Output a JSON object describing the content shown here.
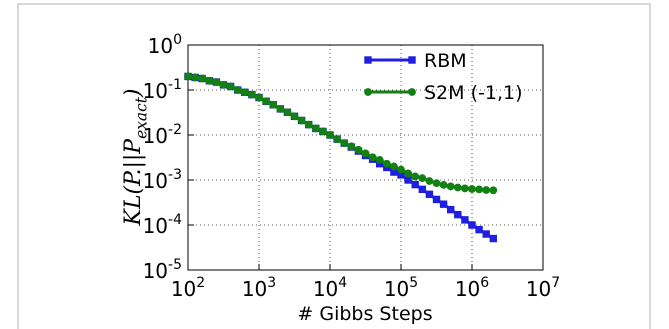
{
  "chart_data": {
    "type": "line",
    "x_label": "# Gibbs Steps",
    "y_label": "KL(P.||P_{exact})",
    "log_x": true,
    "log_y": true,
    "grid": true,
    "legend_position": "upper-right",
    "x": [
      100,
      126,
      158,
      200,
      251,
      316,
      398,
      501,
      631,
      794,
      1000,
      1259,
      1585,
      1995,
      2512,
      3162,
      3981,
      5012,
      6310,
      7943,
      10000,
      12589,
      15849,
      19953,
      25119,
      31623,
      39811,
      50119,
      63096,
      79433,
      100000,
      125893,
      158489,
      199526,
      251189,
      316228,
      398107,
      501187,
      630957,
      794328,
      1000000,
      1258925,
      1584893,
      1995262
    ],
    "series": [
      {
        "name": "RBM",
        "color": "#1f1fdf",
        "marker": "square",
        "values": [
          0.2,
          0.19,
          0.18,
          0.16,
          0.15,
          0.13,
          0.12,
          0.1,
          0.089,
          0.079,
          0.068,
          0.056,
          0.047,
          0.038,
          0.032,
          0.026,
          0.021,
          0.017,
          0.014,
          0.012,
          0.01,
          0.0081,
          0.0066,
          0.0054,
          0.0044,
          0.0035,
          0.0029,
          0.0023,
          0.0019,
          0.0015,
          0.0013,
          0.001,
          0.00079,
          0.00062,
          0.00048,
          0.00037,
          0.00029,
          0.00022,
          0.00017,
          0.00013,
          0.0001,
          7.9e-05,
          6.3e-05,
          5e-05
        ]
      },
      {
        "name": "S2M (-1,1)",
        "color": "#128012",
        "marker": "circle",
        "values": [
          0.2,
          0.19,
          0.18,
          0.16,
          0.15,
          0.13,
          0.12,
          0.1,
          0.089,
          0.079,
          0.068,
          0.056,
          0.047,
          0.038,
          0.032,
          0.026,
          0.021,
          0.017,
          0.014,
          0.012,
          0.01,
          0.0081,
          0.0066,
          0.0056,
          0.0047,
          0.0039,
          0.0032,
          0.0028,
          0.0023,
          0.002,
          0.0017,
          0.0014,
          0.0012,
          0.0011,
          0.00095,
          0.00085,
          0.00078,
          0.00072,
          0.00068,
          0.00065,
          0.00063,
          0.00062,
          0.0006,
          0.00059
        ]
      }
    ],
    "xlim": [
      100,
      10000000
    ],
    "xticks": [
      {
        "value": 100,
        "label": "10^2"
      },
      {
        "value": 1000,
        "label": "10^3"
      },
      {
        "value": 10000,
        "label": "10^4"
      },
      {
        "value": 100000,
        "label": "10^5"
      },
      {
        "value": 1000000,
        "label": "10^6"
      },
      {
        "value": 10000000,
        "label": "10^7"
      }
    ],
    "ylim": [
      1e-05,
      1
    ],
    "yticks": [
      {
        "value": 1e-05,
        "label": "10^-5"
      },
      {
        "value": 0.0001,
        "label": "10^-4"
      },
      {
        "value": 0.001,
        "label": "10^-3"
      },
      {
        "value": 0.01,
        "label": "10^-2"
      },
      {
        "value": 0.1,
        "label": "10^-1"
      },
      {
        "value": 1,
        "label": "10^0"
      }
    ]
  }
}
